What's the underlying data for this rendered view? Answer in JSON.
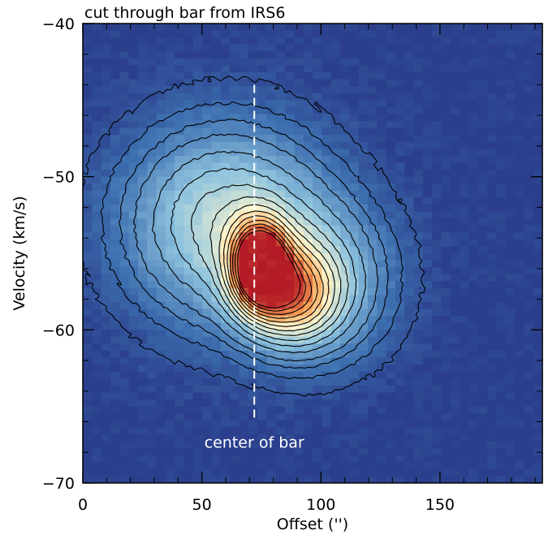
{
  "chart_data": {
    "type": "heatmap",
    "title": "cut through bar from IRS6",
    "xlabel": "Offset ('')",
    "ylabel": "Velocity (km/s)",
    "xlim": [
      0,
      193
    ],
    "ylim": [
      -70,
      -40
    ],
    "x_ticks": [
      0,
      50,
      100,
      150
    ],
    "y_ticks": [
      -70,
      -60,
      -50,
      -40
    ],
    "x_tick_labels": [
      "0",
      "50",
      "100",
      "150"
    ],
    "y_tick_labels": [
      "−70",
      "−60",
      "−50",
      "−40"
    ],
    "colormap": [
      "#2b3f8c",
      "#3d6fb0",
      "#8ec3de",
      "#fff8cf",
      "#f7a256",
      "#b31c26"
    ],
    "peak": {
      "offset": 74,
      "velocity": -56,
      "relative_intensity": 1.0
    },
    "emission_components": [
      {
        "offset": 74,
        "velocity": -55.8,
        "relative_intensity": 0.9
      },
      {
        "offset": 88,
        "velocity": -57.8,
        "relative_intensity": 0.5
      },
      {
        "offset": 60,
        "velocity": -53,
        "relative_intensity": 0.45
      },
      {
        "offset": 100,
        "velocity": -57,
        "relative_intensity": 0.28
      }
    ],
    "contour_levels": [
      0.05,
      0.1,
      0.15,
      0.2,
      0.27,
      0.34,
      0.41,
      0.48,
      0.55,
      0.62,
      0.69,
      0.76,
      0.83,
      0.9,
      0.96
    ],
    "annotations": [
      {
        "text": "center of bar",
        "line_offset": 72,
        "line_velocity_range": [
          -44,
          -66
        ],
        "style": "dashed white vertical line"
      }
    ]
  }
}
